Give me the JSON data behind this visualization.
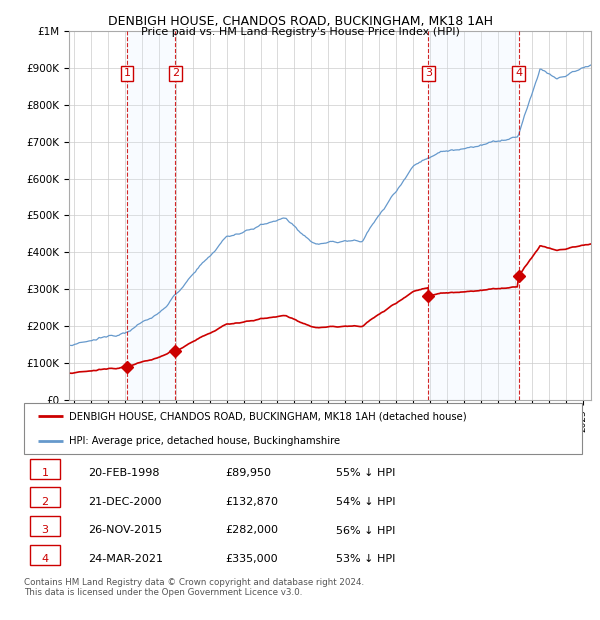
{
  "title": "DENBIGH HOUSE, CHANDOS ROAD, BUCKINGHAM, MK18 1AH",
  "subtitle": "Price paid vs. HM Land Registry's House Price Index (HPI)",
  "ylim": [
    0,
    1000000
  ],
  "yticks": [
    0,
    100000,
    200000,
    300000,
    400000,
    500000,
    600000,
    700000,
    800000,
    900000,
    1000000
  ],
  "ytick_labels": [
    "£0",
    "£100K",
    "£200K",
    "£300K",
    "£400K",
    "£500K",
    "£600K",
    "£700K",
    "£800K",
    "£900K",
    "£1M"
  ],
  "xlim_start": 1994.7,
  "xlim_end": 2025.5,
  "sale_dates": [
    1998.13,
    2000.97,
    2015.9,
    2021.23
  ],
  "sale_prices": [
    89950,
    132870,
    282000,
    335000
  ],
  "sale_labels": [
    "1",
    "2",
    "3",
    "4"
  ],
  "sale_info": [
    {
      "num": "1",
      "date": "20-FEB-1998",
      "price": "£89,950",
      "pct": "55% ↓ HPI"
    },
    {
      "num": "2",
      "date": "21-DEC-2000",
      "price": "£132,870",
      "pct": "54% ↓ HPI"
    },
    {
      "num": "3",
      "date": "26-NOV-2015",
      "price": "£282,000",
      "pct": "56% ↓ HPI"
    },
    {
      "num": "4",
      "date": "24-MAR-2021",
      "price": "£335,000",
      "pct": "53% ↓ HPI"
    }
  ],
  "red_line_color": "#cc0000",
  "blue_line_color": "#6699cc",
  "background_color": "#ffffff",
  "grid_color": "#cccccc",
  "sale_box_color": "#cc0000",
  "vline_color": "#cc0000",
  "shade_color": "#ddeeff",
  "footer": "Contains HM Land Registry data © Crown copyright and database right 2024.\nThis data is licensed under the Open Government Licence v3.0.",
  "legend_red": "DENBIGH HOUSE, CHANDOS ROAD, BUCKINGHAM, MK18 1AH (detached house)",
  "legend_blue": "HPI: Average price, detached house, Buckinghamshire"
}
